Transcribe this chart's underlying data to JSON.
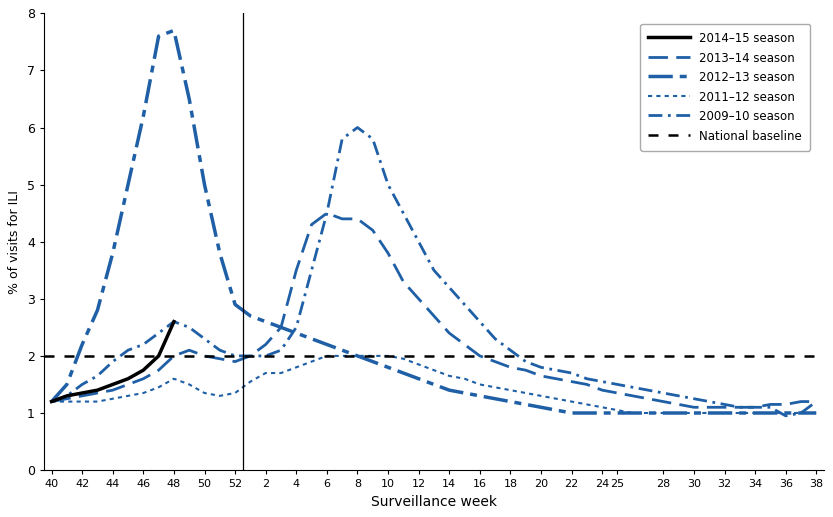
{
  "xlabel": "Surveillance week",
  "ylabel": "% of visits for ILI",
  "ylim": [
    0,
    8
  ],
  "yticks": [
    0,
    1,
    2,
    3,
    4,
    5,
    6,
    7,
    8
  ],
  "baseline": 2.0,
  "background_color": "#ffffff",
  "display_weeks": [
    40,
    42,
    44,
    46,
    48,
    50,
    52,
    2,
    4,
    6,
    8,
    10,
    12,
    14,
    16,
    18,
    20,
    22,
    24,
    25,
    28,
    30,
    32,
    34,
    36,
    38
  ],
  "season_2014_15": {
    "label": "2014–15 season",
    "color": "#000000",
    "linewidth": 2.5,
    "weeks": [
      40,
      41,
      42,
      43,
      44,
      45,
      46,
      47,
      48
    ],
    "values": [
      1.2,
      1.3,
      1.35,
      1.4,
      1.5,
      1.6,
      1.75,
      2.0,
      2.6
    ]
  },
  "season_2013_14": {
    "label": "2013–14 season",
    "color": "#1f5fa6",
    "linewidth": 2.0,
    "weeks": [
      40,
      41,
      42,
      43,
      44,
      45,
      46,
      47,
      48,
      49,
      50,
      51,
      52,
      1,
      2,
      3,
      4,
      5,
      6,
      7,
      8,
      9,
      10,
      11,
      12,
      13,
      14,
      15,
      16,
      17,
      18,
      19,
      20,
      21,
      22,
      23,
      24,
      25,
      26,
      27,
      28,
      29,
      30,
      31,
      32,
      33,
      34,
      35,
      36,
      37,
      38
    ],
    "values": [
      1.2,
      1.25,
      1.3,
      1.35,
      1.4,
      1.5,
      1.6,
      1.75,
      2.0,
      2.1,
      2.0,
      1.95,
      1.9,
      2.0,
      2.2,
      2.5,
      3.5,
      4.3,
      4.5,
      4.4,
      4.4,
      4.2,
      3.8,
      3.3,
      3.0,
      2.7,
      2.4,
      2.2,
      2.0,
      1.9,
      1.8,
      1.75,
      1.65,
      1.6,
      1.55,
      1.5,
      1.4,
      1.35,
      1.3,
      1.25,
      1.2,
      1.15,
      1.1,
      1.1,
      1.1,
      1.1,
      1.1,
      1.15,
      1.15,
      1.2,
      1.2
    ]
  },
  "season_2012_13": {
    "label": "2012–13 season",
    "color": "#1f5fa6",
    "linewidth": 2.5,
    "weeks": [
      40,
      41,
      42,
      43,
      44,
      45,
      46,
      47,
      48,
      49,
      50,
      51,
      52,
      1,
      2,
      3,
      4,
      5,
      6,
      7,
      8,
      9,
      10,
      11,
      12,
      13,
      14,
      15,
      16,
      17,
      18,
      19,
      20,
      21,
      22,
      23,
      24,
      25,
      26,
      27,
      28,
      29,
      30,
      31,
      32,
      33,
      34,
      35,
      36,
      37,
      38
    ],
    "values": [
      1.2,
      1.5,
      2.2,
      2.8,
      3.8,
      5.0,
      6.2,
      7.6,
      7.7,
      6.5,
      5.0,
      3.8,
      2.9,
      2.7,
      2.6,
      2.5,
      2.4,
      2.3,
      2.2,
      2.1,
      2.0,
      1.9,
      1.8,
      1.7,
      1.6,
      1.5,
      1.4,
      1.35,
      1.3,
      1.25,
      1.2,
      1.15,
      1.1,
      1.05,
      1.0,
      1.0,
      1.0,
      1.0,
      1.0,
      1.0,
      1.0,
      1.0,
      1.0,
      1.0,
      1.0,
      1.0,
      1.0,
      1.0,
      1.0,
      1.0,
      1.0
    ]
  },
  "season_2011_12": {
    "label": "2011–12 season",
    "color": "#1f5fa6",
    "linewidth": 1.5,
    "weeks": [
      40,
      41,
      42,
      43,
      44,
      45,
      46,
      47,
      48,
      49,
      50,
      51,
      52,
      1,
      2,
      3,
      4,
      5,
      6,
      7,
      8,
      9,
      10,
      11,
      12,
      13,
      14,
      15,
      16,
      17,
      18,
      19,
      20,
      21,
      22,
      23,
      24,
      25,
      26,
      27,
      28,
      29,
      30,
      31,
      32,
      33,
      34,
      35,
      36,
      37,
      38
    ],
    "values": [
      1.2,
      1.2,
      1.2,
      1.2,
      1.25,
      1.3,
      1.35,
      1.45,
      1.6,
      1.5,
      1.35,
      1.3,
      1.35,
      1.55,
      1.7,
      1.7,
      1.8,
      1.9,
      2.0,
      2.0,
      2.0,
      2.0,
      2.0,
      1.95,
      1.85,
      1.75,
      1.65,
      1.6,
      1.5,
      1.45,
      1.4,
      1.35,
      1.3,
      1.25,
      1.2,
      1.15,
      1.1,
      1.05,
      1.0,
      1.0,
      1.0,
      1.0,
      1.0,
      1.0,
      1.0,
      1.0,
      1.0,
      1.0,
      1.0,
      1.0,
      1.0
    ]
  },
  "season_2009_10": {
    "label": "2009–10 season",
    "color": "#1f5fa6",
    "linewidth": 2.0,
    "weeks": [
      40,
      41,
      42,
      43,
      44,
      45,
      46,
      47,
      48,
      49,
      50,
      51,
      52,
      1,
      2,
      3,
      4,
      5,
      6,
      7,
      8,
      9,
      10,
      11,
      12,
      13,
      14,
      15,
      16,
      17,
      18,
      19,
      20,
      21,
      22,
      23,
      24,
      25,
      26,
      27,
      28,
      29,
      30,
      31,
      32,
      33,
      34,
      35,
      36,
      37,
      38
    ],
    "values": [
      1.2,
      1.3,
      1.5,
      1.65,
      1.9,
      2.1,
      2.2,
      2.4,
      2.6,
      2.5,
      2.3,
      2.1,
      2.0,
      2.0,
      2.0,
      2.1,
      2.5,
      3.5,
      4.5,
      5.8,
      6.0,
      5.8,
      5.0,
      4.5,
      4.0,
      3.5,
      3.2,
      2.9,
      2.6,
      2.3,
      2.1,
      1.9,
      1.8,
      1.75,
      1.7,
      1.6,
      1.55,
      1.5,
      1.45,
      1.4,
      1.35,
      1.3,
      1.25,
      1.2,
      1.15,
      1.1,
      1.1,
      1.1,
      0.95,
      1.0,
      1.2
    ]
  }
}
